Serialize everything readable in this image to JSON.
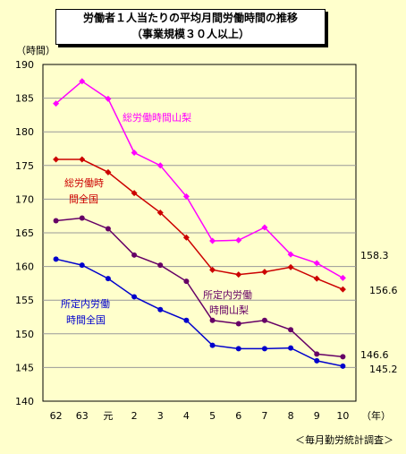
{
  "title_line1": "労働者１人当たりの平均月間労働時間の推移",
  "title_line2": "（事業規模３０人以上）",
  "source": "＜毎月勤労統計調査＞",
  "chart_data": {
    "type": "line",
    "title": "労働者１人当たりの平均月間労働時間の推移（事業規模３０人以上）",
    "ylabel": "（時間）",
    "xlabel": "（年）",
    "ylim": [
      140,
      190
    ],
    "yticks": [
      140,
      145,
      150,
      155,
      160,
      165,
      170,
      175,
      180,
      185,
      190
    ],
    "categories": [
      "62",
      "63",
      "元",
      "2",
      "3",
      "4",
      "5",
      "6",
      "7",
      "8",
      "9",
      "10"
    ],
    "grid": true,
    "series": [
      {
        "name": "総労働時間山梨",
        "color": "#ff00ff",
        "marker": "diamond",
        "values": [
          184.2,
          187.5,
          184.9,
          176.9,
          175.0,
          170.4,
          163.8,
          163.9,
          165.8,
          161.8,
          160.5,
          158.3
        ],
        "end_label": "158.3"
      },
      {
        "name": "総労働時間全国",
        "color": "#cc0000",
        "marker": "diamond",
        "values": [
          175.9,
          175.9,
          174.0,
          170.9,
          168.0,
          164.3,
          159.5,
          158.8,
          159.2,
          159.9,
          158.2,
          156.6
        ],
        "end_label": "156.6"
      },
      {
        "name": "所定内労働時間山梨",
        "color": "#660066",
        "marker": "circle",
        "values": [
          166.8,
          167.2,
          165.6,
          161.7,
          160.2,
          157.8,
          152.0,
          151.5,
          152.0,
          150.6,
          147.0,
          146.6
        ],
        "end_label": "146.6"
      },
      {
        "name": "所定内労働時間全国",
        "color": "#0000cc",
        "marker": "circle",
        "values": [
          161.1,
          160.2,
          158.2,
          155.5,
          153.6,
          152.0,
          148.3,
          147.8,
          147.8,
          147.9,
          146.0,
          145.2
        ],
        "end_label": "145.2"
      }
    ],
    "annotations": [
      {
        "text": "総労働時間山梨",
        "series": 0
      },
      {
        "text": "総労働時",
        "series": 1
      },
      {
        "text": "間全国",
        "series": 1
      },
      {
        "text": "所定内労働",
        "series": 2
      },
      {
        "text": "時間山梨",
        "series": 2
      },
      {
        "text": "所定内労働",
        "series": 3
      },
      {
        "text": "時間全国",
        "series": 3
      }
    ]
  }
}
